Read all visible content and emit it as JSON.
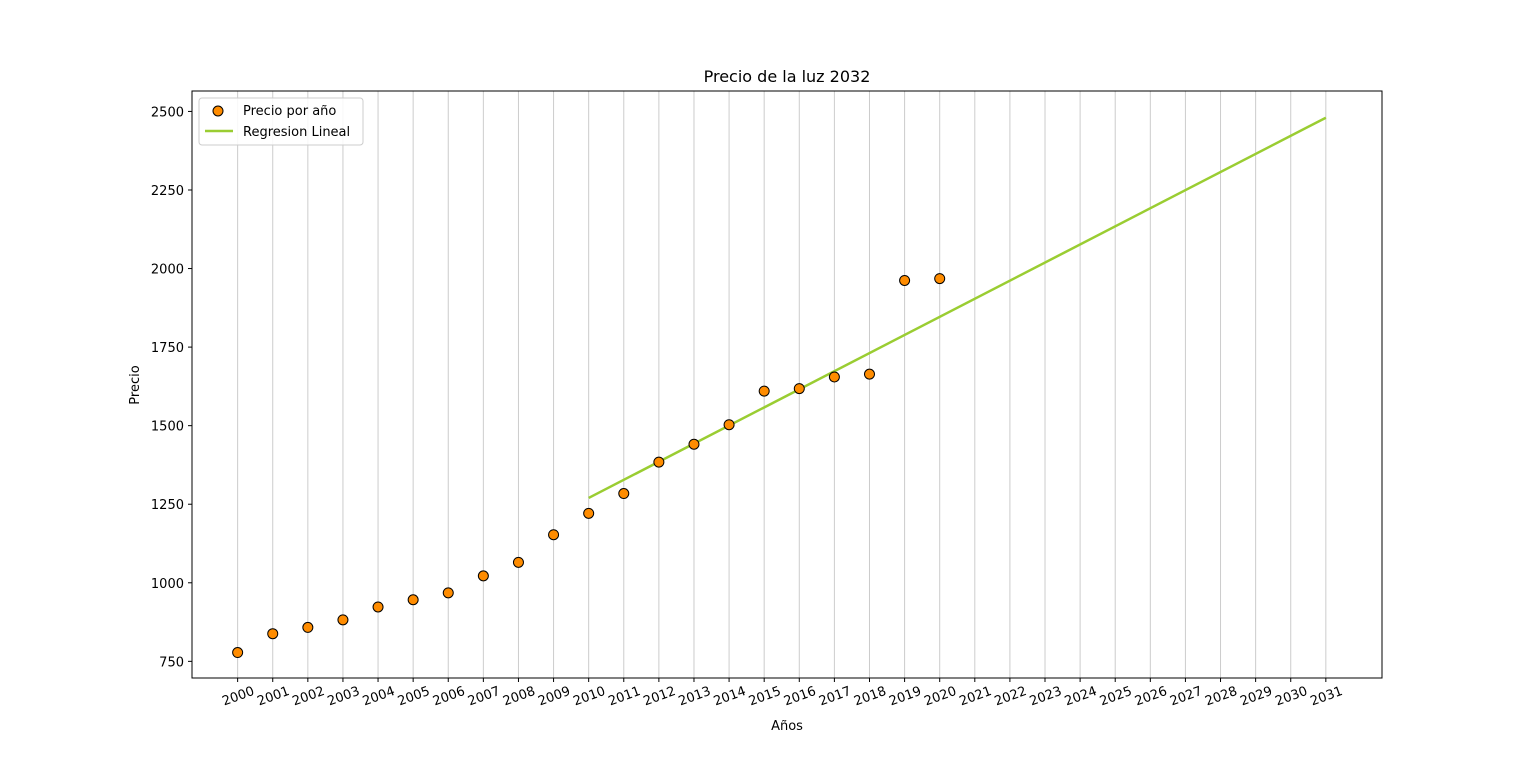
{
  "chart_data": {
    "type": "scatter",
    "title": "Precio de la luz 2032",
    "xlabel": "Años",
    "ylabel": "Precio",
    "xticks": [
      "2000",
      "2001",
      "2002",
      "2003",
      "2004",
      "2005",
      "2006",
      "2007",
      "2008",
      "2009",
      "2010",
      "2011",
      "2012",
      "2013",
      "2014",
      "2015",
      "2016",
      "2017",
      "2018",
      "2019",
      "2020",
      "2021",
      "2022",
      "2023",
      "2024",
      "2025",
      "2026",
      "2027",
      "2028",
      "2029",
      "2030",
      "2031"
    ],
    "xtick_rotation": 20,
    "yticks": [
      750,
      1000,
      1250,
      1500,
      1750,
      2000,
      2250,
      2500
    ],
    "xlim": [
      1998.7,
      2032.6
    ],
    "ylim": [
      697,
      2565
    ],
    "grid": "x",
    "legend_position": "top-left",
    "series": [
      {
        "name": "Precio por año",
        "kind": "scatter",
        "color": "#ff8c00",
        "edgecolor": "#000000",
        "x": [
          2000,
          2001,
          2002,
          2003,
          2004,
          2005,
          2006,
          2007,
          2008,
          2009,
          2010,
          2011,
          2012,
          2013,
          2014,
          2015,
          2016,
          2017,
          2018,
          2019,
          2020
        ],
        "y": [
          778,
          838,
          858,
          882,
          923,
          946,
          968,
          1022,
          1065,
          1153,
          1221,
          1284,
          1384,
          1441,
          1503,
          1610,
          1618,
          1655,
          1664,
          1962,
          1968
        ]
      },
      {
        "name": "Regresion Lineal",
        "kind": "line",
        "color": "#9acd32",
        "x": [
          2010,
          2031
        ],
        "y": [
          1270,
          2480
        ]
      }
    ]
  }
}
